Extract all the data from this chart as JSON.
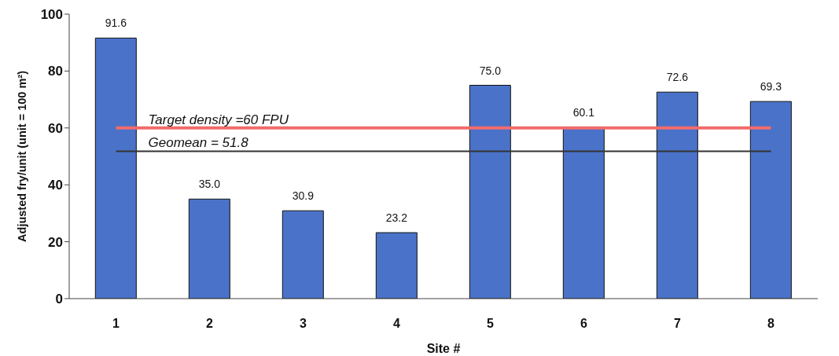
{
  "chart_data": {
    "type": "bar",
    "categories": [
      "1",
      "2",
      "3",
      "4",
      "5",
      "6",
      "7",
      "8"
    ],
    "values": [
      91.6,
      35.0,
      30.9,
      23.2,
      75.0,
      60.1,
      72.6,
      69.3
    ],
    "value_labels": [
      "91.6",
      "35.0",
      "30.9",
      "23.2",
      "75.0",
      "60.1",
      "72.6",
      "69.3"
    ],
    "color": "#4a72c8",
    "xlabel": "Site #",
    "ylabel": "Adjusted fry/unit (unit = 100 m²)",
    "ylim": [
      0,
      100
    ],
    "yticks": [
      0,
      20,
      40,
      60,
      80,
      100
    ],
    "ref_lines": [
      {
        "axis": "y",
        "value": 60,
        "label": "Target density =60 FPU",
        "color": "#f26b6b"
      },
      {
        "axis": "y",
        "value": 51.8,
        "label": "Geomean = 51.8",
        "color": "#333333"
      }
    ]
  }
}
